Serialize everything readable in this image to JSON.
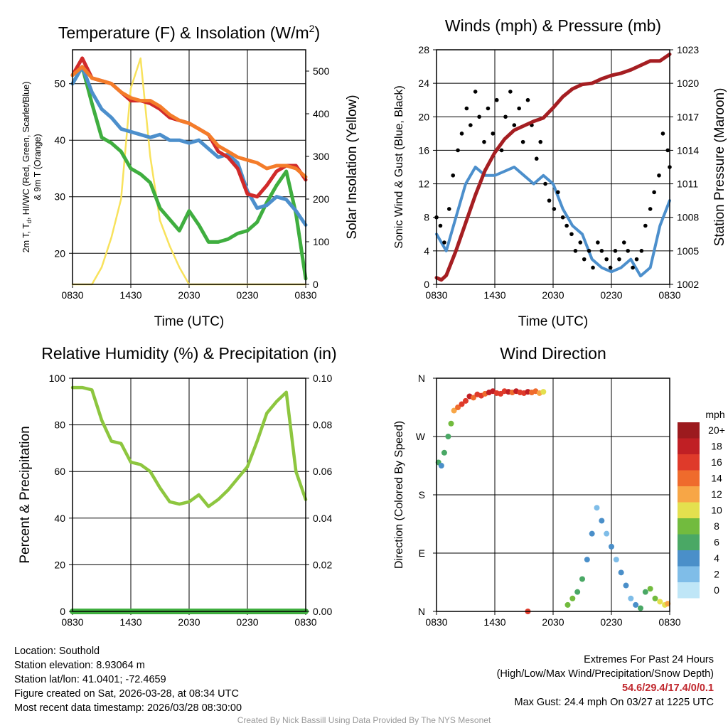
{
  "chart_data": [
    {
      "type": "line",
      "title": "Temperature (F) & Insolation (W/m²)",
      "title_main": "Temperature (F) & Insolation (W/m",
      "title_sup": "2",
      "title_end": ")",
      "xlabel": "Time (UTC)",
      "ylabel_line1": "2m T, T",
      "ylabel_sub": "d",
      "ylabel_line1_end": ", HI/WC (Red, Green, Scarlet/Blue)",
      "ylabel_line2": "& 9m T (Orange)",
      "ylabel_right": "Solar Insolation (Yellow)",
      "x_ticks": [
        "0830",
        "1430",
        "2030",
        "0230",
        "0830"
      ],
      "ylim": [
        14.5,
        56
      ],
      "y_ticks": [
        20,
        30,
        40,
        50
      ],
      "ylim_right": [
        0,
        550
      ],
      "y_ticks_right": [
        0,
        100,
        200,
        300,
        400,
        500
      ],
      "series": [
        {
          "name": "9m T",
          "color": "#f47c2a",
          "x": [
            0,
            1,
            2,
            3,
            4,
            5,
            6,
            7,
            8,
            9,
            10,
            11,
            12,
            13,
            14,
            15,
            16,
            17,
            18,
            19,
            20,
            21,
            22,
            23,
            24
          ],
          "values": [
            51.5,
            53,
            51,
            50.5,
            50,
            48.5,
            47.5,
            47,
            47,
            46,
            44.5,
            43.5,
            43,
            42,
            41,
            39,
            38,
            37,
            36.5,
            36,
            35,
            35.5,
            35.5,
            35,
            33.5
          ]
        },
        {
          "name": "2m T",
          "color": "#d12a2a",
          "x": [
            0,
            1,
            2,
            3,
            4,
            5,
            6,
            7,
            8,
            9,
            10,
            11,
            12,
            13,
            14,
            15,
            16,
            17,
            18,
            19,
            20,
            21,
            22,
            23,
            24
          ],
          "values": [
            51.5,
            54.5,
            51,
            50.5,
            50,
            48.5,
            47,
            47,
            46.5,
            45.5,
            44,
            43.5,
            43,
            42,
            41,
            38,
            37,
            35,
            30.5,
            30,
            32,
            34.5,
            35.5,
            35.5,
            33
          ]
        },
        {
          "name": "HI/WC",
          "color": "#4c8fcc",
          "x": [
            0,
            1,
            2,
            3,
            4,
            5,
            6,
            7,
            8,
            9,
            10,
            11,
            12,
            13,
            14,
            15,
            16,
            17,
            18,
            19,
            20,
            21,
            22,
            23,
            24
          ],
          "values": [
            50,
            53,
            48.5,
            45.5,
            44,
            42,
            41.5,
            41,
            40.5,
            41,
            40,
            40,
            39.5,
            40,
            38.5,
            37,
            37.5,
            36,
            31,
            28,
            28.5,
            30,
            29.5,
            27.5,
            25
          ]
        },
        {
          "name": "Td",
          "color": "#3fae3f",
          "x": [
            0,
            1,
            2,
            3,
            4,
            5,
            6,
            7,
            8,
            9,
            10,
            11,
            12,
            13,
            14,
            15,
            16,
            17,
            18,
            19,
            20,
            21,
            22,
            23,
            24
          ],
          "values": [
            50,
            53,
            46.5,
            40.5,
            39.5,
            38,
            35,
            34,
            32.5,
            28,
            26,
            24,
            27.5,
            25,
            22,
            22,
            22.5,
            23.5,
            24,
            25.5,
            29,
            32,
            34.5,
            27,
            15.5
          ]
        },
        {
          "name": "Solar Insolation",
          "color": "#f8e25c",
          "axis": "right",
          "x": [
            0,
            1,
            2,
            3,
            4,
            5,
            6,
            7,
            8,
            9,
            10,
            11,
            12,
            13,
            14,
            15,
            16,
            17,
            18,
            19,
            20,
            21,
            22,
            23,
            24
          ],
          "values": [
            0,
            0,
            0,
            40,
            110,
            200,
            460,
            530,
            300,
            150,
            90,
            40,
            0,
            0,
            0,
            0,
            0,
            0,
            0,
            0,
            0,
            0,
            0,
            0,
            0
          ]
        }
      ]
    },
    {
      "type": "scatter",
      "title": "Winds (mph) & Pressure (mb)",
      "xlabel": "Time (UTC)",
      "ylabel": "Sonic Wind & Gust (Blue, Black)",
      "ylabel_right": "Station Pressure (Maroon)",
      "x_ticks": [
        "0830",
        "1430",
        "2030",
        "0230",
        "0830"
      ],
      "ylim": [
        0,
        28
      ],
      "y_ticks": [
        0,
        4,
        8,
        12,
        16,
        20,
        24,
        28
      ],
      "ylim_right": [
        1002,
        1023
      ],
      "y_ticks_right": [
        1002,
        1005,
        1008,
        1011,
        1014,
        1017,
        1020,
        1023
      ],
      "series": [
        {
          "name": "Station Pressure",
          "color": "#a51e22",
          "axis": "right",
          "x": [
            0,
            0.5,
            1,
            2,
            3,
            4,
            5,
            6,
            7,
            8,
            9,
            10,
            11,
            12,
            13,
            14,
            15,
            16,
            17,
            18,
            19,
            20,
            21,
            22,
            23,
            24
          ],
          "values": [
            1002.6,
            1002.4,
            1002.8,
            1005,
            1007.5,
            1010,
            1012.2,
            1013.8,
            1015,
            1015.8,
            1016.2,
            1016.6,
            1016.9,
            1017.8,
            1018.8,
            1019.5,
            1019.9,
            1020,
            1020.4,
            1020.7,
            1020.9,
            1021.2,
            1021.6,
            1022,
            1022,
            1022.6
          ]
        },
        {
          "name": "Sonic Wind",
          "color": "#4c8fcc",
          "x": [
            0,
            1,
            2,
            3,
            4,
            5,
            6,
            7,
            8,
            9,
            10,
            11,
            12,
            13,
            14,
            15,
            16,
            17,
            18,
            19,
            20,
            21,
            22,
            23,
            24
          ],
          "values": [
            6,
            4,
            8,
            12,
            14,
            13,
            13,
            13.5,
            14,
            13,
            12,
            13,
            12,
            9,
            7,
            6,
            3,
            2,
            1.5,
            2,
            3,
            1,
            2,
            7,
            10
          ]
        },
        {
          "name": "Gust",
          "color": "#000000",
          "x": [
            0,
            0.4,
            0.8,
            1.3,
            1.7,
            2.2,
            2.6,
            3.1,
            3.5,
            4,
            4.4,
            4.9,
            5.3,
            5.8,
            6.2,
            6.7,
            7.1,
            7.6,
            8,
            8.5,
            8.9,
            9.4,
            9.8,
            10.3,
            10.7,
            11.2,
            11.6,
            12.1,
            12.5,
            13,
            13.4,
            13.9,
            14.3,
            14.8,
            15.2,
            15.7,
            16.1,
            16.6,
            17,
            17.5,
            17.9,
            18.4,
            18.8,
            19.3,
            19.7,
            20.2,
            20.6,
            21.1,
            21.5,
            22,
            22.4,
            22.9,
            23.3,
            23.8,
            24
          ],
          "values": [
            8,
            7,
            5,
            9,
            13,
            16,
            18,
            21,
            19,
            23,
            20,
            17,
            21,
            18,
            22,
            16,
            20,
            23,
            19,
            21,
            17,
            22,
            19,
            15,
            17,
            12,
            10,
            9,
            11,
            8,
            7,
            6,
            4,
            5,
            3,
            4,
            2,
            5,
            4,
            3,
            2,
            4,
            3,
            5,
            4,
            2,
            3,
            4,
            7,
            9,
            11,
            13,
            18,
            16,
            14
          ]
        }
      ]
    },
    {
      "type": "line",
      "title": "Relative Humidity (%) & Precipitation (in)",
      "ylabel": "Percent & Precipitation",
      "x_ticks": [
        "0830",
        "1430",
        "2030",
        "0230",
        "0830"
      ],
      "ylim": [
        0,
        100
      ],
      "y_ticks": [
        0,
        20,
        40,
        60,
        80,
        100
      ],
      "ylim_right": [
        0,
        0.1
      ],
      "y_ticks_right": [
        "0.00",
        "0.02",
        "0.04",
        "0.06",
        "0.08",
        "0.10"
      ],
      "series": [
        {
          "name": "Relative Humidity",
          "color": "#8dc63f",
          "x": [
            0,
            1,
            2,
            3,
            4,
            5,
            6,
            7,
            8,
            9,
            10,
            11,
            12,
            13,
            14,
            15,
            16,
            17,
            18,
            19,
            20,
            21,
            22,
            23,
            24
          ],
          "values": [
            96,
            96,
            95,
            82,
            73,
            72,
            64,
            63,
            60,
            53,
            47,
            46,
            47,
            50,
            45,
            48,
            52,
            57,
            62,
            73,
            85,
            90,
            94,
            60,
            48
          ]
        },
        {
          "name": "Precipitation",
          "color": "#3fae3f",
          "axis": "right",
          "x": [
            0,
            24
          ],
          "values": [
            0,
            0
          ]
        }
      ]
    },
    {
      "type": "scatter",
      "title": "Wind Direction",
      "ylabel": "Direction (Colored By Speed)",
      "x_ticks": [
        "0830",
        "1430",
        "2030",
        "0230",
        "0830"
      ],
      "y_ticks": [
        "N",
        "E",
        "S",
        "W",
        "N"
      ],
      "ylim": [
        0,
        360
      ],
      "legend_title": "mph",
      "legend_labels": [
        "0",
        "2",
        "4",
        "6",
        "8",
        "10",
        "12",
        "14",
        "16",
        "18",
        "20+"
      ],
      "legend_colors": [
        "#bfe6f7",
        "#7fbde8",
        "#4a8fc9",
        "#4aa865",
        "#72bb3e",
        "#e4e04e",
        "#f7a646",
        "#ef6b2c",
        "#df3a2a",
        "#c01f24",
        "#9c1a1e"
      ],
      "x": [
        0.2,
        0.5,
        0.8,
        1.2,
        1.5,
        1.8,
        2.2,
        2.6,
        3,
        3.4,
        3.8,
        4.2,
        4.6,
        5,
        5.4,
        5.8,
        6.2,
        6.6,
        7,
        7.4,
        7.8,
        8.2,
        8.6,
        9,
        9.4,
        9.8,
        10.2,
        10.6,
        11,
        13.5,
        14,
        14.5,
        15,
        15.5,
        16,
        16.5,
        17,
        17.5,
        18,
        18.5,
        19,
        19.5,
        20,
        20.5,
        21,
        21.5,
        22,
        22.5,
        23,
        23.5,
        23.8,
        9.4
      ],
      "values": [
        230,
        225,
        245,
        270,
        290,
        310,
        315,
        320,
        325,
        332,
        330,
        335,
        333,
        336,
        338,
        340,
        337,
        336,
        340,
        339,
        338,
        340,
        338,
        337,
        339,
        338,
        340,
        337,
        339,
        10,
        20,
        30,
        50,
        80,
        120,
        160,
        140,
        120,
        100,
        80,
        60,
        40,
        20,
        10,
        5,
        30,
        35,
        20,
        15,
        10,
        12,
        0
      ],
      "speeds": [
        6,
        4,
        5,
        6,
        8,
        12,
        14,
        16,
        15,
        17,
        13,
        15,
        16,
        14,
        17,
        18,
        15,
        16,
        16,
        18,
        14,
        17,
        15,
        16,
        18,
        14,
        13,
        12,
        10,
        7,
        8,
        6,
        5,
        4,
        3,
        2,
        3,
        2,
        3,
        2,
        3,
        4,
        2,
        3,
        5,
        6,
        7,
        8,
        9,
        10,
        11,
        15
      ]
    }
  ],
  "info_left": {
    "location": "Location: Southold",
    "elevation": "Station elevation: 8.93064 m",
    "latlon": "Station lat/lon: 41.0401; -72.4659",
    "created": "Figure created on Sat, 2026-03-28, at 08:34 UTC",
    "recent": "Most recent data timestamp: 2026/03/28 08:30:00"
  },
  "info_right": {
    "extremes_title": "Extremes For Past 24 Hours",
    "extremes_desc": "(High/Low/Max Wind/Precipitation/Snow Depth)",
    "extremes_values": "54.6/29.4/17.4/0/0.1",
    "max_gust": "Max Gust: 24.4 mph On 03/27 at 1225 UTC"
  },
  "credit": "Created By Nick Bassill Using Data Provided By The NYS Mesonet"
}
